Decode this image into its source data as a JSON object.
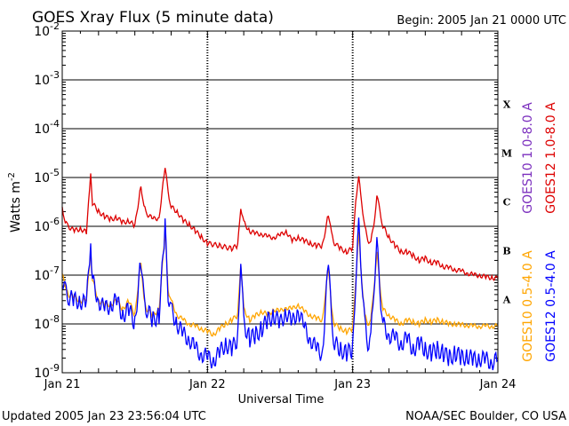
{
  "chart_data": {
    "type": "line",
    "title": "GOES Xray Flux (5 minute data)",
    "begin_label": "Begin:  2005 Jan 21 0000 UTC",
    "ylabel_main": "Watts m",
    "ylabel_exp": "-2",
    "xlabel": "Universal Time",
    "footer_left": "Updated 2005 Jan 23 23:56:04 UTC",
    "footer_right": "NOAA/SEC Boulder, CO USA",
    "yscale": "log",
    "ylim": [
      1e-09,
      0.01
    ],
    "xlim": [
      0,
      72
    ],
    "y_ticks": [
      {
        "base": "10",
        "exp": "-2",
        "value": 0.01
      },
      {
        "base": "10",
        "exp": "-3",
        "value": 0.001
      },
      {
        "base": "10",
        "exp": "-4",
        "value": 0.0001
      },
      {
        "base": "10",
        "exp": "-5",
        "value": 1e-05
      },
      {
        "base": "10",
        "exp": "-6",
        "value": 1e-06
      },
      {
        "base": "10",
        "exp": "-7",
        "value": 1e-07
      },
      {
        "base": "10",
        "exp": "-8",
        "value": 1e-08
      },
      {
        "base": "10",
        "exp": "-9",
        "value": 1e-09
      }
    ],
    "x_ticks": [
      {
        "label": "Jan 21",
        "hour": 0
      },
      {
        "label": "Jan 22",
        "hour": 24
      },
      {
        "label": "Jan 23",
        "hour": 48
      },
      {
        "label": "Jan 24",
        "hour": 72
      }
    ],
    "flare_classes": [
      {
        "label": "X",
        "value": 0.000316
      },
      {
        "label": "M",
        "value": 3.16e-05
      },
      {
        "label": "C",
        "value": 3.16e-06
      },
      {
        "label": "B",
        "value": 3.16e-07
      },
      {
        "label": "A",
        "value": 3.16e-08
      }
    ],
    "legend": [
      {
        "label": "GOES10 1.0-8.0 A",
        "color": "#7b2fbe",
        "series": "goes10_long"
      },
      {
        "label": "GOES12 1.0-8.0 A",
        "color": "#dd0000",
        "series": "goes12_long"
      },
      {
        "label": "GOES10 0.5-4.0 A",
        "color": "#ffa500",
        "series": "goes10_short"
      },
      {
        "label": "GOES12 0.5-4.0 A",
        "color": "#0000ff",
        "series": "goes12_short"
      }
    ],
    "series": [
      {
        "name": "GOES12 1.0-8.0 A",
        "color": "#dd0000",
        "points": [
          [
            0,
            2.5e-06
          ],
          [
            0.5,
            1.2e-06
          ],
          [
            1,
            1e-06
          ],
          [
            2,
            8e-07
          ],
          [
            3,
            9e-07
          ],
          [
            4,
            7.5e-07
          ],
          [
            4.7,
            1.1e-05
          ],
          [
            5,
            3e-06
          ],
          [
            6,
            2e-06
          ],
          [
            7,
            1.6e-06
          ],
          [
            8,
            1.4e-06
          ],
          [
            9,
            1.5e-06
          ],
          [
            10,
            1.2e-06
          ],
          [
            11,
            1.3e-06
          ],
          [
            12,
            1e-06
          ],
          [
            13,
            7e-06
          ],
          [
            13.5,
            2.5e-06
          ],
          [
            14,
            1.8e-06
          ],
          [
            15,
            1.4e-06
          ],
          [
            16,
            1.5e-06
          ],
          [
            17,
            1.6e-05
          ],
          [
            17.5,
            5e-06
          ],
          [
            18,
            2.5e-06
          ],
          [
            19,
            2e-06
          ],
          [
            20,
            1.3e-06
          ],
          [
            21,
            1.1e-06
          ],
          [
            22,
            8e-07
          ],
          [
            23,
            6e-07
          ],
          [
            24,
            4.5e-07
          ],
          [
            26,
            4e-07
          ],
          [
            28,
            3.5e-07
          ],
          [
            29,
            4e-07
          ],
          [
            29.5,
            2.5e-06
          ],
          [
            30,
            1.2e-06
          ],
          [
            31,
            8e-07
          ],
          [
            32,
            7e-07
          ],
          [
            33,
            7e-07
          ],
          [
            34,
            6e-07
          ],
          [
            35,
            6e-07
          ],
          [
            36,
            6.5e-07
          ],
          [
            37,
            8e-07
          ],
          [
            38,
            5e-07
          ],
          [
            39,
            6e-07
          ],
          [
            40,
            5e-07
          ],
          [
            41,
            4.5e-07
          ],
          [
            42,
            4e-07
          ],
          [
            43,
            4e-07
          ],
          [
            44,
            1.8e-06
          ],
          [
            44.5,
            7e-07
          ],
          [
            45,
            4.5e-07
          ],
          [
            46,
            3.5e-07
          ],
          [
            47,
            3e-07
          ],
          [
            48,
            3.5e-07
          ],
          [
            48.5,
            3.5e-06
          ],
          [
            49,
            1e-05
          ],
          [
            49.5,
            3e-06
          ],
          [
            50,
            1e-06
          ],
          [
            50.5,
            5e-07
          ],
          [
            51,
            5e-07
          ],
          [
            51.5,
            1e-06
          ],
          [
            52,
            4.5e-06
          ],
          [
            52.5,
            2e-06
          ],
          [
            53,
            1e-06
          ],
          [
            54,
            6e-07
          ],
          [
            55,
            4e-07
          ],
          [
            56,
            3e-07
          ],
          [
            57,
            3e-07
          ],
          [
            58,
            2.5e-07
          ],
          [
            59,
            2e-07
          ],
          [
            60,
            2.2e-07
          ],
          [
            61,
            1.8e-07
          ],
          [
            62,
            1.8e-07
          ],
          [
            63,
            1.5e-07
          ],
          [
            64,
            1.4e-07
          ],
          [
            65,
            1.3e-07
          ],
          [
            66,
            1.2e-07
          ],
          [
            67,
            1.1e-07
          ],
          [
            68,
            1e-07
          ],
          [
            69,
            1e-07
          ],
          [
            70,
            9e-08
          ],
          [
            71,
            9e-08
          ],
          [
            72,
            8.5e-08
          ]
        ]
      },
      {
        "name": "GOES10 0.5-4.0 A",
        "color": "#ffa500",
        "points": [
          [
            0,
            1e-07
          ],
          [
            1,
            4e-08
          ],
          [
            2,
            3.5e-08
          ],
          [
            3,
            3e-08
          ],
          [
            4,
            3e-08
          ],
          [
            4.7,
            3e-07
          ],
          [
            5,
            8e-08
          ],
          [
            6,
            3e-08
          ],
          [
            7,
            2.5e-08
          ],
          [
            8,
            2.5e-08
          ],
          [
            9,
            3e-08
          ],
          [
            10,
            2e-08
          ],
          [
            11,
            3e-08
          ],
          [
            12,
            1.5e-08
          ],
          [
            13,
            2e-07
          ],
          [
            13.5,
            3e-08
          ],
          [
            14,
            2e-08
          ],
          [
            15,
            1.5e-08
          ],
          [
            16,
            2e-08
          ],
          [
            17,
            8e-07
          ],
          [
            17.5,
            5e-08
          ],
          [
            18,
            3e-08
          ],
          [
            19,
            1.5e-08
          ],
          [
            20,
            1.2e-08
          ],
          [
            21,
            1e-08
          ],
          [
            22,
            9e-09
          ],
          [
            23,
            8e-09
          ],
          [
            24,
            7e-09
          ],
          [
            25,
            6e-09
          ],
          [
            26,
            8e-09
          ],
          [
            27,
            1e-08
          ],
          [
            28,
            1.2e-08
          ],
          [
            29,
            1.5e-08
          ],
          [
            29.5,
            1.8e-07
          ],
          [
            30,
            2e-08
          ],
          [
            31,
            1.2e-08
          ],
          [
            32,
            1.5e-08
          ],
          [
            33,
            1.8e-08
          ],
          [
            34,
            1.5e-08
          ],
          [
            35,
            2e-08
          ],
          [
            36,
            1.8e-08
          ],
          [
            37,
            2.2e-08
          ],
          [
            38,
            2e-08
          ],
          [
            39,
            2.5e-08
          ],
          [
            40,
            1.8e-08
          ],
          [
            41,
            1.5e-08
          ],
          [
            42,
            1.3e-08
          ],
          [
            43,
            1.2e-08
          ],
          [
            44,
            1.5e-07
          ],
          [
            44.5,
            2e-08
          ],
          [
            45,
            1e-08
          ],
          [
            46,
            8e-09
          ],
          [
            47,
            7e-09
          ],
          [
            48,
            8e-09
          ],
          [
            48.5,
            8e-08
          ],
          [
            49,
            7e-07
          ],
          [
            49.5,
            8e-08
          ],
          [
            50,
            1.5e-08
          ],
          [
            50.5,
            1e-08
          ],
          [
            51,
            1.2e-08
          ],
          [
            51.5,
            5e-08
          ],
          [
            52,
            3e-07
          ],
          [
            52.5,
            6e-08
          ],
          [
            53,
            2e-08
          ],
          [
            54,
            1.5e-08
          ],
          [
            55,
            1.2e-08
          ],
          [
            56,
            1e-08
          ],
          [
            57,
            1.2e-08
          ],
          [
            58,
            1.1e-08
          ],
          [
            59,
            1e-08
          ],
          [
            60,
            1.2e-08
          ],
          [
            61,
            1.1e-08
          ],
          [
            62,
            1.2e-08
          ],
          [
            63,
            1.1e-08
          ],
          [
            64,
            1e-08
          ],
          [
            65,
            1e-08
          ],
          [
            66,
            9.5e-09
          ],
          [
            67,
            9.5e-09
          ],
          [
            68,
            9e-09
          ],
          [
            69,
            9e-09
          ],
          [
            70,
            9e-09
          ],
          [
            71,
            9e-09
          ],
          [
            72,
            9e-09
          ]
        ]
      },
      {
        "name": "GOES12 0.5-4.0 A",
        "color": "#0000ff",
        "points": [
          [
            0,
            8e-08
          ],
          [
            0.5,
            5e-08
          ],
          [
            1,
            3.5e-08
          ],
          [
            2,
            3e-08
          ],
          [
            3,
            3e-08
          ],
          [
            4,
            2.5e-08
          ],
          [
            4.7,
            5e-07
          ],
          [
            5,
            8e-08
          ],
          [
            6,
            3e-08
          ],
          [
            7,
            2e-08
          ],
          [
            8,
            2.5e-08
          ],
          [
            9,
            3e-08
          ],
          [
            10,
            1.5e-08
          ],
          [
            11,
            2e-08
          ],
          [
            12,
            1e-08
          ],
          [
            13,
            2e-07
          ],
          [
            13.5,
            3e-08
          ],
          [
            14,
            2e-08
          ],
          [
            15,
            1.2e-08
          ],
          [
            16,
            1.5e-08
          ],
          [
            17,
            1e-06
          ],
          [
            17.5,
            4e-08
          ],
          [
            18,
            2e-08
          ],
          [
            19,
            1e-08
          ],
          [
            20,
            6e-09
          ],
          [
            21,
            5e-09
          ],
          [
            22,
            3e-09
          ],
          [
            23,
            2.5e-09
          ],
          [
            24,
            2e-09
          ],
          [
            25,
            1.8e-09
          ],
          [
            26,
            2.5e-09
          ],
          [
            27,
            4e-09
          ],
          [
            28,
            3e-09
          ],
          [
            29,
            5e-09
          ],
          [
            29.5,
            2.5e-07
          ],
          [
            30,
            1e-08
          ],
          [
            31,
            5e-09
          ],
          [
            32,
            6e-09
          ],
          [
            33,
            8e-09
          ],
          [
            34,
            1.2e-08
          ],
          [
            35,
            1.5e-08
          ],
          [
            36,
            1e-08
          ],
          [
            37,
            1.8e-08
          ],
          [
            38,
            1e-08
          ],
          [
            39,
            2e-08
          ],
          [
            40,
            8e-09
          ],
          [
            41,
            5e-09
          ],
          [
            42,
            3e-09
          ],
          [
            43,
            2.5e-09
          ],
          [
            44,
            2e-07
          ],
          [
            44.5,
            1.2e-08
          ],
          [
            45,
            4e-09
          ],
          [
            46,
            3e-09
          ],
          [
            47,
            2.5e-09
          ],
          [
            48,
            3e-09
          ],
          [
            48.5,
            8e-08
          ],
          [
            49,
            1e-06
          ],
          [
            49.5,
            1e-07
          ],
          [
            50,
            1e-08
          ],
          [
            50.5,
            4e-09
          ],
          [
            51,
            5e-09
          ],
          [
            51.5,
            5e-08
          ],
          [
            52,
            5e-07
          ],
          [
            52.5,
            5e-08
          ],
          [
            53,
            1e-08
          ],
          [
            54,
            6e-09
          ],
          [
            55,
            5e-09
          ],
          [
            56,
            4e-09
          ],
          [
            57,
            5e-09
          ],
          [
            58,
            3e-09
          ],
          [
            59,
            4e-09
          ],
          [
            60,
            3e-09
          ],
          [
            61,
            2.5e-09
          ],
          [
            62,
            3e-09
          ],
          [
            63,
            2.5e-09
          ],
          [
            64,
            2e-09
          ],
          [
            65,
            2.5e-09
          ],
          [
            66,
            2e-09
          ],
          [
            67,
            2.2e-09
          ],
          [
            68,
            1.8e-09
          ],
          [
            69,
            2e-09
          ],
          [
            70,
            1.8e-09
          ],
          [
            71,
            1.7e-09
          ],
          [
            72,
            1.8e-09
          ]
        ]
      }
    ]
  }
}
